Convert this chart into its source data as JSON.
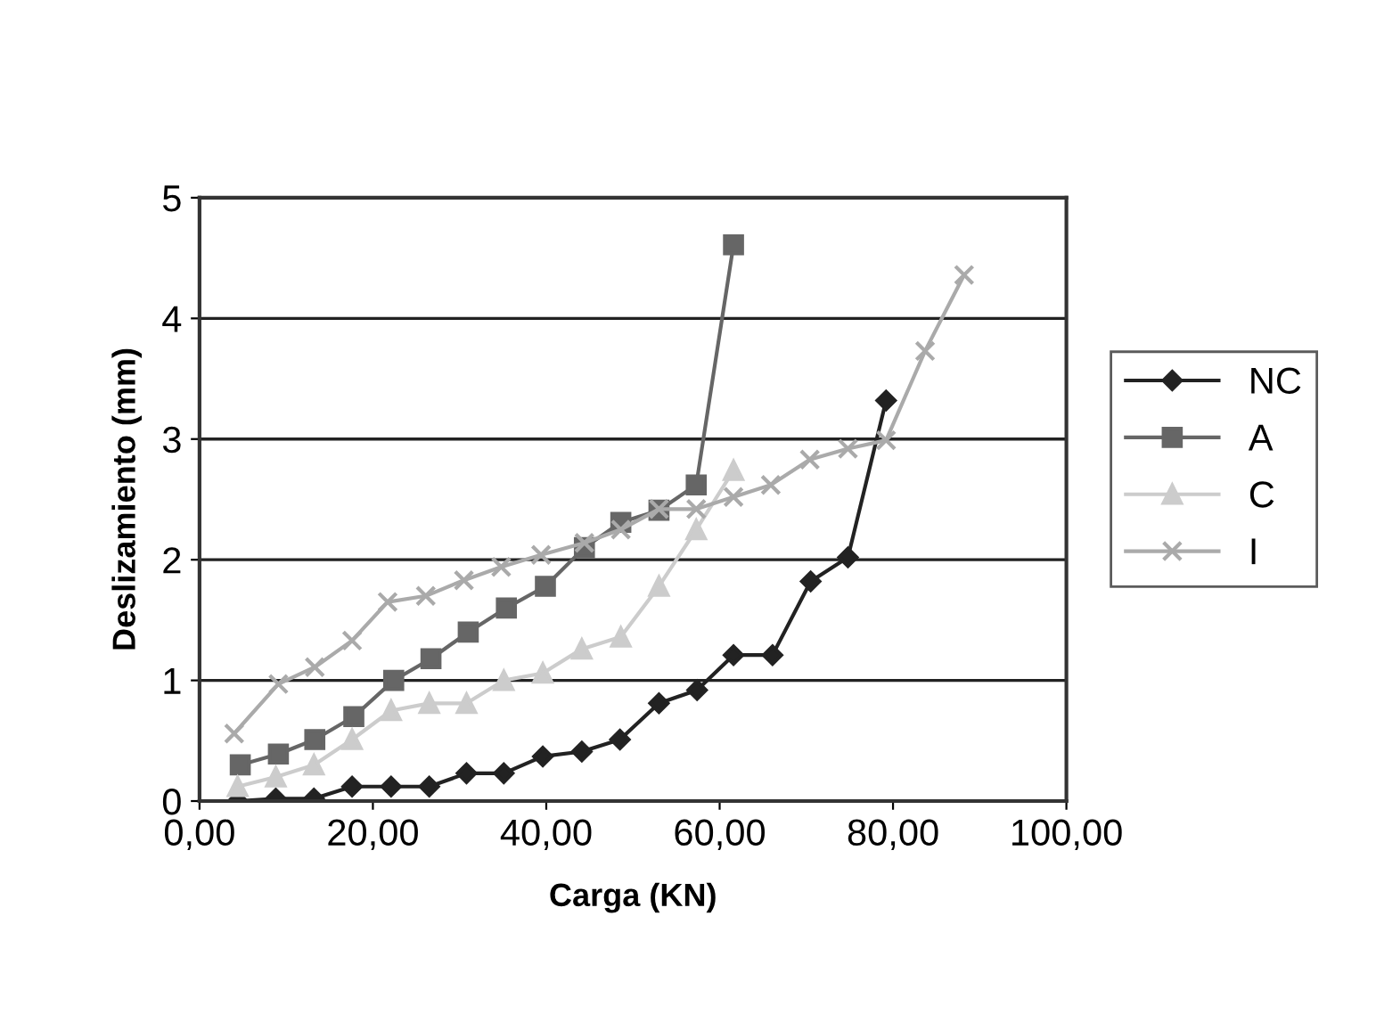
{
  "chart_data": {
    "type": "line",
    "xlabel": "Carga (KN)",
    "ylabel": "Deslizamiento (mm)",
    "xlim": [
      0,
      100
    ],
    "xticks": [
      {
        "value": 0,
        "label": "0,00"
      },
      {
        "value": 20,
        "label": "20,00"
      },
      {
        "value": 40,
        "label": "40,00"
      },
      {
        "value": 60,
        "label": "60,00"
      },
      {
        "value": 80,
        "label": "80,00"
      },
      {
        "value": 100,
        "label": "100,00"
      }
    ],
    "ylim": [
      0,
      5
    ],
    "yticks": [
      0,
      1,
      2,
      3,
      4,
      5
    ],
    "grid": "y",
    "legend": "right",
    "series": [
      {
        "name": "NC",
        "color": "#222222",
        "marker": "diamond",
        "x": [
          4.4,
          8.8,
          13.2,
          17.6,
          22.1,
          26.5,
          30.8,
          35.1,
          39.6,
          44.1,
          48.5,
          53.0,
          57.4,
          61.6,
          66.1,
          70.5,
          74.8,
          79.2
        ],
        "values": [
          0,
          0.02,
          0.02,
          0.12,
          0.12,
          0.12,
          0.23,
          0.23,
          0.37,
          0.41,
          0.51,
          0.81,
          0.92,
          1.21,
          1.21,
          1.82,
          2.02,
          3.32
        ]
      },
      {
        "name": "A",
        "color": "#666666",
        "marker": "square",
        "x": [
          4.7,
          9.1,
          13.3,
          17.8,
          22.4,
          26.7,
          31.0,
          35.4,
          39.9,
          44.4,
          48.6,
          53.0,
          57.3,
          61.6
        ],
        "values": [
          0.3,
          0.39,
          0.51,
          0.7,
          1.0,
          1.18,
          1.4,
          1.6,
          1.78,
          2.1,
          2.31,
          2.41,
          2.62,
          4.61
        ]
      },
      {
        "name": "C",
        "color": "#cccccc",
        "marker": "triangle",
        "x": [
          4.4,
          8.8,
          13.2,
          17.6,
          22.1,
          26.5,
          30.8,
          35.1,
          39.6,
          44.1,
          48.6,
          53.0,
          57.3,
          61.6
        ],
        "values": [
          0.12,
          0.2,
          0.3,
          0.51,
          0.75,
          0.81,
          0.81,
          1.0,
          1.06,
          1.26,
          1.36,
          1.78,
          2.25,
          2.74
        ]
      },
      {
        "name": "I",
        "color": "#aaaaaa",
        "marker": "cross",
        "x": [
          4.0,
          9.1,
          13.3,
          17.6,
          21.7,
          26.1,
          30.5,
          34.8,
          39.4,
          44.4,
          48.6,
          53.0,
          57.3,
          61.6,
          65.9,
          70.4,
          74.8,
          79.2,
          83.7,
          88.2
        ],
        "values": [
          0.56,
          0.97,
          1.11,
          1.33,
          1.65,
          1.7,
          1.83,
          1.94,
          2.04,
          2.14,
          2.25,
          2.42,
          2.42,
          2.52,
          2.62,
          2.83,
          2.92,
          2.99,
          3.73,
          4.36
        ]
      }
    ]
  }
}
